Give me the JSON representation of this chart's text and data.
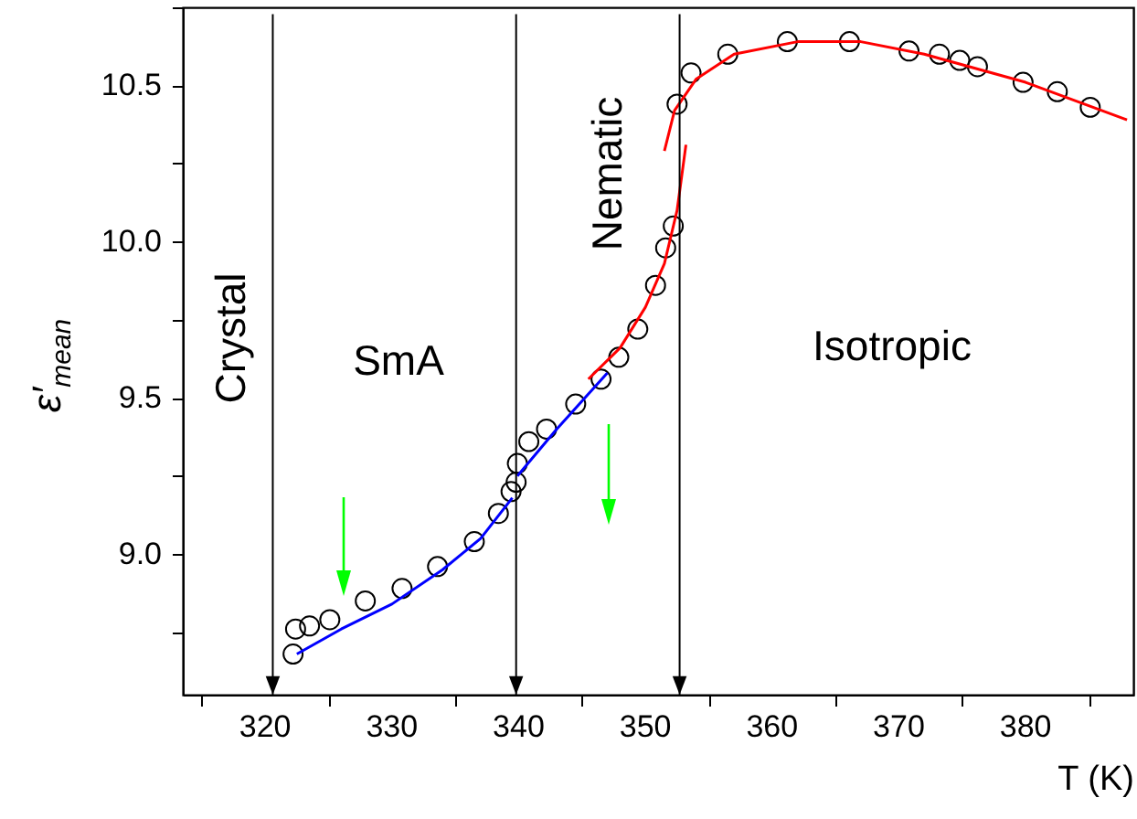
{
  "chart_data": {
    "type": "scatter",
    "xlabel": "T (K)",
    "ylabel": "ε′$_{mean}$",
    "xlim": [
      313.5,
      388.5
    ],
    "ylim": [
      8.55,
      10.75
    ],
    "xticks": [
      {
        "value": 315,
        "label": null
      },
      320,
      {
        "value": 325,
        "label": null
      },
      330,
      {
        "value": 335,
        "label": null
      },
      340,
      {
        "value": 345,
        "label": null
      },
      350,
      {
        "value": 355,
        "label": null
      },
      360,
      {
        "value": 365,
        "label": null
      },
      370,
      {
        "value": 375,
        "label": null
      },
      380,
      {
        "value": 385,
        "label": null
      }
    ],
    "yticks": [
      {
        "value": 8.75,
        "label": null
      },
      {
        "value": 9,
        "label": "9.0"
      },
      {
        "value": 9.25,
        "label": null
      },
      {
        "value": 9.5,
        "label": "9.5"
      },
      {
        "value": 9.75,
        "label": null
      },
      {
        "value": 10,
        "label": "10.0"
      },
      {
        "value": 10.25,
        "label": null
      },
      {
        "value": 10.5,
        "label": "10.5"
      },
      {
        "value": 10.75,
        "label": null
      }
    ],
    "grid": false,
    "series": [
      {
        "color": "#000000",
        "marker": "circle",
        "x": [
          322.2,
          322.4,
          323.5,
          325.1,
          327.9,
          330.8,
          333.6,
          336.5,
          338.4,
          339.4,
          339.8,
          339.9,
          340.8,
          342.2,
          344.5,
          346.5,
          347.9,
          349.4,
          350.8,
          351.6,
          352.2,
          352.5,
          353.6,
          356.5,
          361.2,
          366.1,
          370.8,
          373.2,
          374.8,
          376.2,
          379.8,
          382.5,
          385.1
        ],
        "values": [
          8.68,
          8.76,
          8.77,
          8.79,
          8.85,
          8.89,
          8.96,
          9.04,
          9.13,
          9.2,
          9.23,
          9.29,
          9.36,
          9.4,
          9.48,
          9.56,
          9.63,
          9.72,
          9.86,
          9.98,
          10.05,
          10.44,
          10.54,
          10.6,
          10.64,
          10.64,
          10.61,
          10.6,
          10.58,
          10.56,
          10.51,
          10.48,
          10.43
        ]
      },
      {
        "type": "line",
        "color": "#0000ff",
        "x": [
          322.5,
          326,
          330,
          334,
          337,
          339.5
        ],
        "values": [
          8.68,
          8.76,
          8.84,
          8.95,
          9.05,
          9.18
        ]
      },
      {
        "type": "line",
        "color": "#0000ff",
        "x": [
          339.9,
          343,
          347
        ],
        "values": [
          9.25,
          9.4,
          9.58
        ]
      },
      {
        "type": "line",
        "color": "#ff0000",
        "x": [
          345.5,
          348,
          350,
          351.5,
          352.5,
          353.2
        ],
        "values": [
          9.56,
          9.66,
          9.79,
          9.93,
          10.1,
          10.31
        ]
      },
      {
        "type": "line",
        "color": "#ff0000",
        "x": [
          351.5,
          352.3,
          354,
          357,
          362,
          367,
          372,
          380,
          388
        ],
        "values": [
          10.29,
          10.42,
          10.52,
          10.6,
          10.64,
          10.64,
          10.6,
          10.51,
          10.39
        ]
      }
    ],
    "ref_lines": [
      {
        "axis": "x",
        "value": 320.6,
        "color": "#000000"
      },
      {
        "axis": "x",
        "value": 339.8,
        "color": "#000000"
      },
      {
        "axis": "x",
        "value": 352.7,
        "color": "#000000"
      }
    ],
    "annotations": [
      "Crystal",
      "SmA",
      "Nematic",
      "Isotropic"
    ]
  }
}
